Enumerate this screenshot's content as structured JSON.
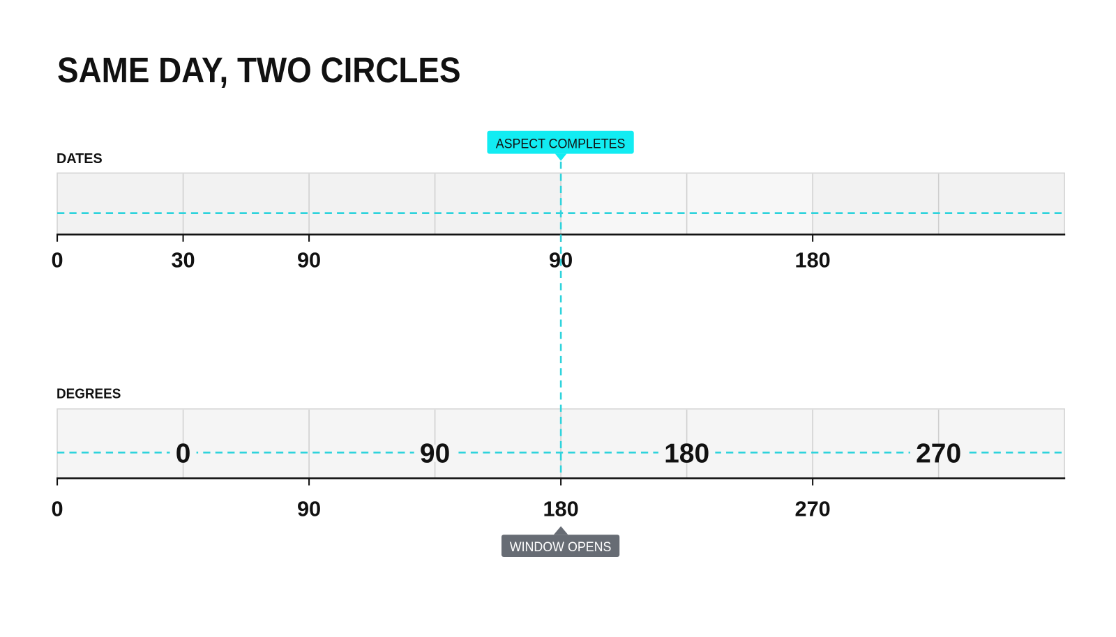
{
  "title": "SAME DAY, TWO CIRCLES",
  "dates": {
    "label": "DATES",
    "axis_labels": [
      "0",
      "30",
      "90",
      "90",
      "180"
    ]
  },
  "degrees": {
    "label": "DEGREES",
    "track_labels": [
      "0",
      "90",
      "180",
      "270"
    ],
    "axis_labels": [
      "0",
      "90",
      "180",
      "270"
    ]
  },
  "callouts": {
    "top": "ASPECT COMPLETES",
    "bottom": "WINDOW OPENS"
  }
}
